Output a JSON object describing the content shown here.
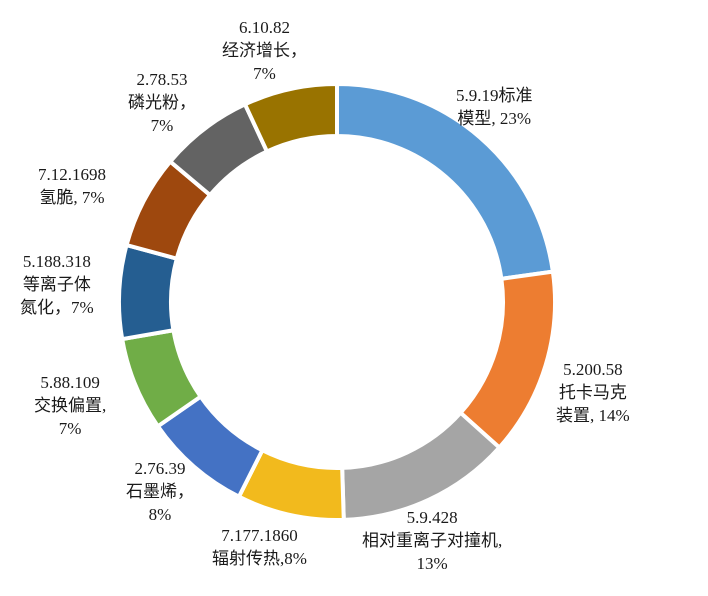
{
  "chart_data": {
    "type": "pie",
    "variant": "donut",
    "start_angle_deg": 0,
    "direction": "clockwise",
    "slices": [
      {
        "code": "5.9.19",
        "name": "标准模型",
        "value": 23,
        "label_lines": [
          "5.9.19标准",
          "模型, 23%"
        ],
        "color": "#5B9BD5"
      },
      {
        "code": "5.200.58",
        "name": "托卡马克装置",
        "value": 14,
        "label_lines": [
          "5.200.58",
          "托卡马克",
          "装置, 14%"
        ],
        "color": "#ED7D31"
      },
      {
        "code": "5.9.428",
        "name": "相对重离子对撞机",
        "value": 13,
        "label_lines": [
          "5.9.428",
          "相对重离子对撞机,",
          "13%"
        ],
        "color": "#A5A5A5"
      },
      {
        "code": "7.177.1860",
        "name": "辐射传热",
        "value": 8,
        "label_lines": [
          "7.177.1860",
          "辐射传热,8%"
        ],
        "color": "#F2BA1D"
      },
      {
        "code": "2.76.39",
        "name": "石墨烯",
        "value": 8,
        "label_lines": [
          "2.76.39",
          "石墨烯，",
          "8%"
        ],
        "color": "#4472C4"
      },
      {
        "code": "5.88.109",
        "name": "交换偏置",
        "value": 7,
        "label_lines": [
          "5.88.109",
          "交换偏置,",
          "7%"
        ],
        "color": "#70AD47"
      },
      {
        "code": "5.188.318",
        "name": "等离子体氮化",
        "value": 7,
        "label_lines": [
          "5.188.318",
          "等离子体",
          "氮化，7%"
        ],
        "color": "#255E91"
      },
      {
        "code": "7.12.1698",
        "name": "氢脆",
        "value": 7,
        "label_lines": [
          "7.12.1698",
          "氢脆, 7%"
        ],
        "color": "#9E480E"
      },
      {
        "code": "2.78.53",
        "name": "磷光粉",
        "value": 7,
        "label_lines": [
          "2.78.53",
          "磷光粉，",
          "7%"
        ],
        "color": "#636363"
      },
      {
        "code": "6.10.82",
        "name": "经济增长",
        "value": 7,
        "label_lines": [
          "6.10.82",
          "经济增长，",
          "7%"
        ],
        "color": "#997300"
      }
    ],
    "legend": "none"
  }
}
